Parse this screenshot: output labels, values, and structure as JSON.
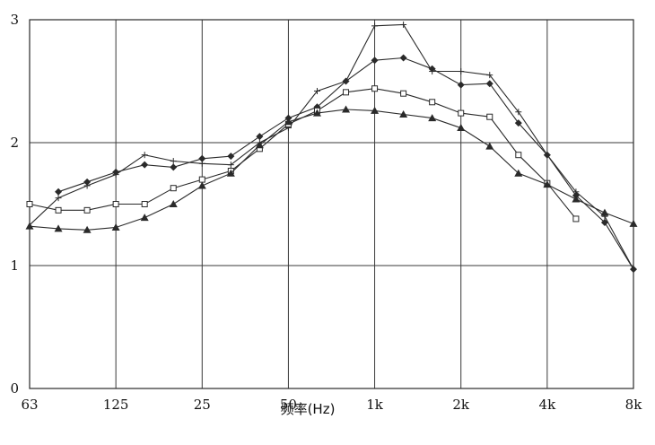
{
  "chart_data": {
    "type": "line",
    "title": "",
    "xlabel": "频率(Hz)",
    "ylabel": "",
    "ylim": [
      0,
      3
    ],
    "grid": true,
    "y_ticks": [
      "0",
      "1",
      "2",
      "3"
    ],
    "x_tick_labels": [
      "63",
      "125",
      "25",
      "50",
      "1k",
      "2k",
      "4k",
      "8k"
    ],
    "x_tick_positions": [
      0,
      3,
      6,
      9,
      12,
      15,
      18,
      21
    ],
    "colors": {
      "line": "#2a2a2a",
      "grid": "#3a3a3a",
      "background": "#ffffff"
    },
    "series": [
      {
        "marker": "plus",
        "x": [
          0,
          1,
          2,
          3,
          4,
          5,
          6,
          7,
          8,
          9,
          10,
          11,
          12,
          13,
          14,
          15,
          16,
          17,
          18,
          19,
          20,
          21
        ],
        "values": [
          1.33,
          1.55,
          1.65,
          1.74,
          1.9,
          1.85,
          1.83,
          1.82,
          2.0,
          2.12,
          2.42,
          2.5,
          2.95,
          2.96,
          2.58,
          2.58,
          2.55,
          2.25,
          1.9,
          1.6,
          1.4,
          0.97
        ]
      },
      {
        "marker": "diamond",
        "x": [
          1,
          2,
          3,
          4,
          5,
          6,
          7,
          8,
          9,
          10,
          11,
          12,
          13,
          14,
          15,
          16,
          17,
          18,
          19,
          20,
          21
        ],
        "values": [
          1.6,
          1.68,
          1.76,
          1.82,
          1.8,
          1.87,
          1.89,
          2.05,
          2.2,
          2.29,
          2.5,
          2.67,
          2.69,
          2.6,
          2.47,
          2.48,
          2.16,
          1.9,
          1.57,
          1.35,
          0.97
        ]
      },
      {
        "marker": "square",
        "x": [
          0,
          1,
          2,
          3,
          4,
          5,
          6,
          7,
          8,
          9,
          10,
          11,
          12,
          13,
          14,
          15,
          16,
          17,
          18,
          19
        ],
        "values": [
          1.5,
          1.45,
          1.45,
          1.5,
          1.5,
          1.63,
          1.7,
          1.77,
          1.95,
          2.15,
          2.26,
          2.41,
          2.44,
          2.4,
          2.33,
          2.24,
          2.21,
          1.9,
          1.67,
          1.38
        ]
      },
      {
        "marker": "triangle",
        "x": [
          0,
          1,
          2,
          3,
          4,
          5,
          6,
          7,
          8,
          9,
          10,
          11,
          12,
          13,
          14,
          15,
          16,
          17,
          18,
          19,
          20,
          21
        ],
        "values": [
          1.32,
          1.3,
          1.29,
          1.31,
          1.39,
          1.5,
          1.65,
          1.75,
          1.98,
          2.17,
          2.24,
          2.27,
          2.26,
          2.23,
          2.2,
          2.12,
          1.97,
          1.75,
          1.66,
          1.54,
          1.43,
          1.34
        ]
      }
    ]
  }
}
